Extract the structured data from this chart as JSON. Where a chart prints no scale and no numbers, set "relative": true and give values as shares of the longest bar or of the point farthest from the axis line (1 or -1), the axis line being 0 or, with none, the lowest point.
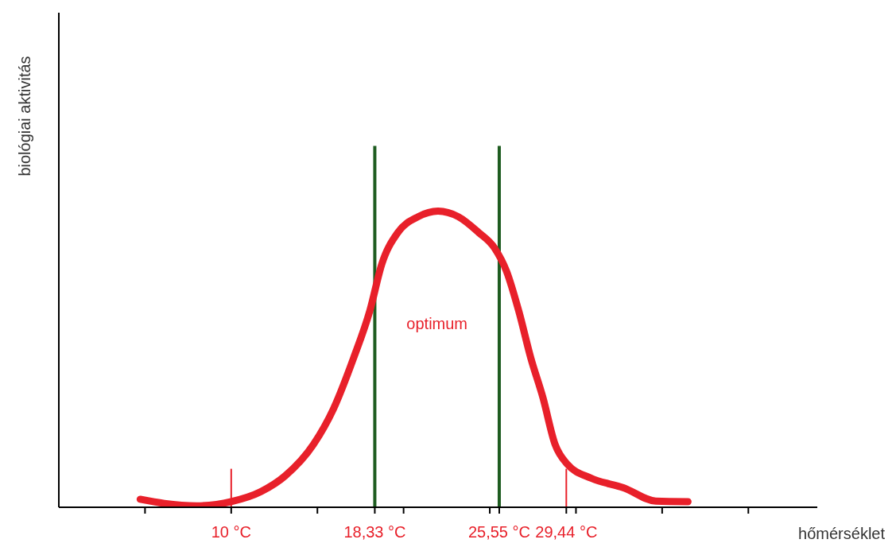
{
  "chart_data": {
    "type": "line",
    "relative": true,
    "xlabel": "hőmérséklet",
    "ylabel": "biológiai aktivitás",
    "x": [
      4.72,
      6.12,
      8.0,
      10.0,
      11.73,
      13.13,
      14.77,
      15.93,
      17.1,
      18.04,
      18.74,
      19.67,
      20.84,
      22.0,
      23.18,
      24.35,
      25.28,
      25.98,
      26.68,
      27.38,
      28.08,
      28.79,
      29.49,
      30.89,
      32.76,
      34.63,
      36.5
    ],
    "series": [
      {
        "color": "#e8202a",
        "values": [
          0.027,
          0.013,
          0.005,
          0.019,
          0.053,
          0.106,
          0.212,
          0.332,
          0.504,
          0.663,
          0.822,
          0.928,
          0.981,
          1.0,
          0.981,
          0.928,
          0.875,
          0.796,
          0.663,
          0.504,
          0.371,
          0.212,
          0.146,
          0.098,
          0.066,
          0.021,
          0.019
        ]
      }
    ],
    "xlim": [
      0,
      44
    ],
    "xticks": [
      {
        "value": 5,
        "label": null
      },
      {
        "value": 10,
        "label": "10 °C"
      },
      {
        "value": 15,
        "label": null
      },
      {
        "value": 18.33,
        "label": "18,33 °C"
      },
      {
        "value": 20,
        "label": null
      },
      {
        "value": 25,
        "label": null
      },
      {
        "value": 25.55,
        "label": "25,55 °C"
      },
      {
        "value": 29.44,
        "label": "29,44 °C"
      },
      {
        "value": 30,
        "label": null
      },
      {
        "value": 35,
        "label": null
      },
      {
        "value": 40,
        "label": null
      }
    ],
    "ref_lines": [
      {
        "axis": "x",
        "value": 18.33,
        "color": "#1e5c20"
      },
      {
        "axis": "x",
        "value": 25.55,
        "color": "#1e5c20"
      },
      {
        "axis": "x",
        "value": 10,
        "color": "#e8202a"
      },
      {
        "axis": "x",
        "value": 29.44,
        "color": "#e8202a"
      }
    ],
    "annotations": [
      "optimum"
    ],
    "grid": false,
    "legend": false,
    "marker": "none",
    "line_style": "solid"
  }
}
